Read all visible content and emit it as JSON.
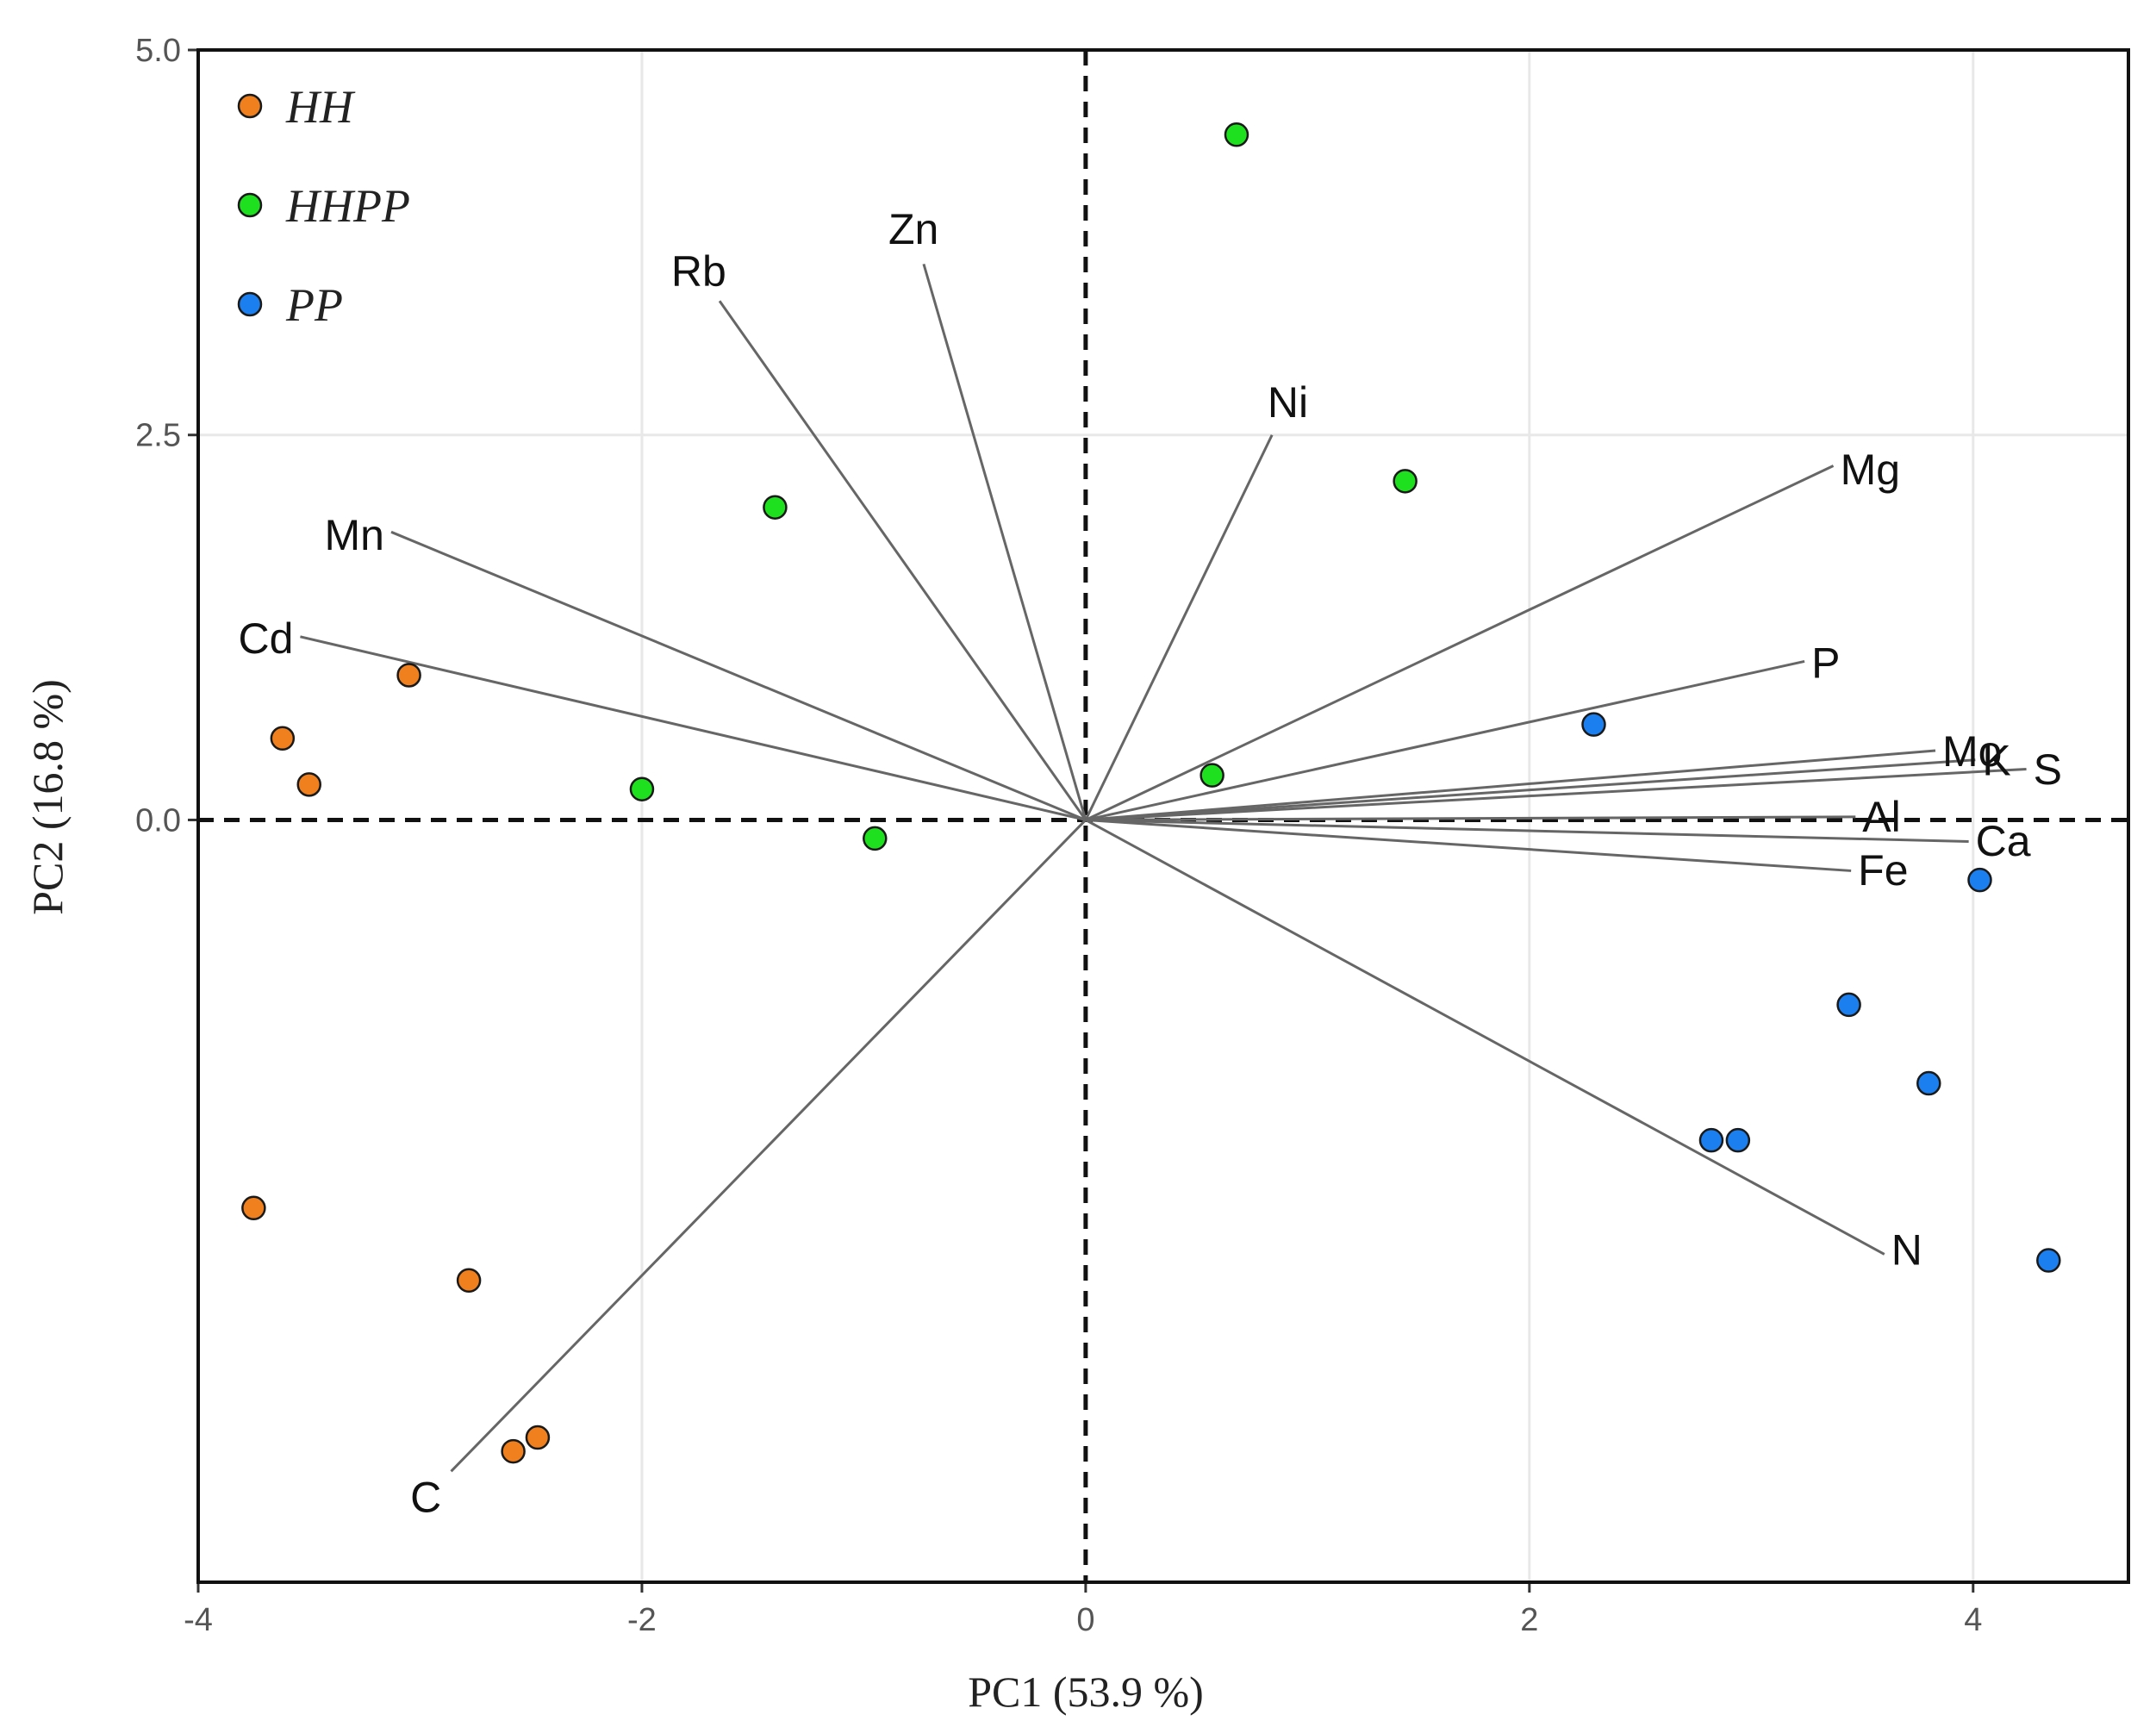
{
  "chart_data": {
    "type": "scatter",
    "subtype": "pca-biplot",
    "title": "",
    "xlabel": "PC1 (53.9 %)",
    "ylabel": "PC2 (16.8 %)",
    "xlim": [
      -4.0,
      4.7
    ],
    "ylim": [
      -4.95,
      5.0
    ],
    "xticks": [
      -4,
      -2,
      0,
      2,
      4
    ],
    "xtick_labels": [
      "-4",
      "-2",
      "0",
      "2",
      "4"
    ],
    "yticks": [
      5.0,
      2.5,
      0.0
    ],
    "ytick_labels": [
      "5.0",
      "2.5",
      "0.0"
    ],
    "grid": true,
    "legend_position": "top-left",
    "zero_lines": "dashed",
    "series": [
      {
        "name": "HH",
        "color": "#f07f1e",
        "points": [
          {
            "x": -3.05,
            "y": 0.94
          },
          {
            "x": -3.62,
            "y": 0.53
          },
          {
            "x": -3.5,
            "y": 0.23
          },
          {
            "x": -3.75,
            "y": -2.52
          },
          {
            "x": -2.78,
            "y": -2.99
          },
          {
            "x": -2.58,
            "y": -4.1
          },
          {
            "x": -2.47,
            "y": -4.01
          }
        ]
      },
      {
        "name": "HHPP",
        "color": "#1fe01f",
        "points": [
          {
            "x": 0.68,
            "y": 4.45
          },
          {
            "x": 1.44,
            "y": 2.2
          },
          {
            "x": -1.4,
            "y": 2.03
          },
          {
            "x": -2.0,
            "y": 0.2
          },
          {
            "x": -0.95,
            "y": -0.12
          },
          {
            "x": 0.57,
            "y": 0.29
          }
        ]
      },
      {
        "name": "PP",
        "color": "#1b7ff0",
        "points": [
          {
            "x": 2.29,
            "y": 0.62
          },
          {
            "x": 4.03,
            "y": -0.39
          },
          {
            "x": 3.44,
            "y": -1.2
          },
          {
            "x": 3.8,
            "y": -1.71
          },
          {
            "x": 2.82,
            "y": -2.08
          },
          {
            "x": 2.94,
            "y": -2.08
          },
          {
            "x": 4.34,
            "y": -2.86
          }
        ]
      }
    ],
    "loadings": [
      {
        "name": "Rb",
        "x": -1.65,
        "y": 3.37
      },
      {
        "name": "Zn",
        "x": -0.73,
        "y": 3.61
      },
      {
        "name": "Ni",
        "x": 0.84,
        "y": 2.5
      },
      {
        "name": "Mg",
        "x": 3.37,
        "y": 2.3
      },
      {
        "name": "Mn",
        "x": -3.13,
        "y": 1.87
      },
      {
        "name": "Cd",
        "x": -3.54,
        "y": 1.19
      },
      {
        "name": "P",
        "x": 3.24,
        "y": 1.03
      },
      {
        "name": "Mo",
        "x": 3.83,
        "y": 0.45
      },
      {
        "name": "K",
        "x": 4.01,
        "y": 0.39
      },
      {
        "name": "S",
        "x": 4.24,
        "y": 0.33
      },
      {
        "name": "Al",
        "x": 3.47,
        "y": 0.02
      },
      {
        "name": "Ca",
        "x": 3.98,
        "y": -0.14
      },
      {
        "name": "Fe",
        "x": 3.45,
        "y": -0.33
      },
      {
        "name": "N",
        "x": 3.6,
        "y": -2.82
      },
      {
        "name": "C",
        "x": -2.86,
        "y": -4.23
      }
    ]
  }
}
